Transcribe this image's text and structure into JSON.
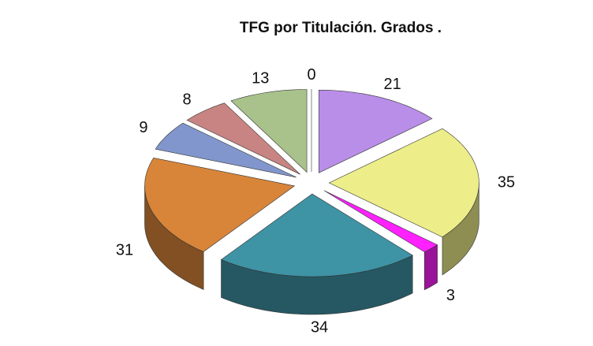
{
  "chart_data": {
    "type": "pie",
    "title": "TFG por Titulación. Grados .",
    "values": [
      0,
      21,
      35,
      3,
      34,
      31,
      9,
      8,
      13
    ],
    "colors": [
      "#ffffff",
      "#b98ee8",
      "#eded8a",
      "#ff22ff",
      "#3e93a4",
      "#d8853a",
      "#8196cc",
      "#c88482",
      "#a9c28c"
    ]
  }
}
